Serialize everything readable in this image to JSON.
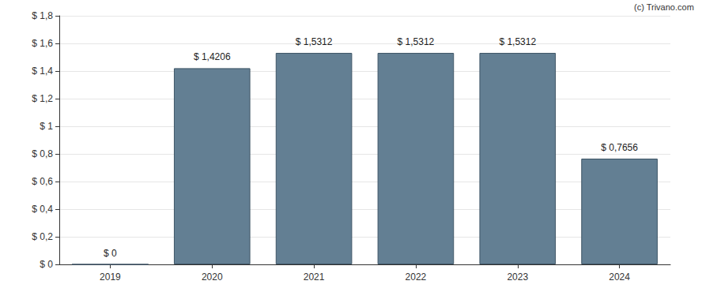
{
  "chart_data": {
    "type": "bar",
    "annotations": [
      "(c) Trivano.com"
    ],
    "categories": [
      "2019",
      "2020",
      "2021",
      "2022",
      "2023",
      "2024"
    ],
    "values": [
      0,
      1.4206,
      1.5312,
      1.5312,
      1.5312,
      0.7656
    ],
    "value_labels": [
      "$ 0",
      "$ 1,4206",
      "$ 1,5312",
      "$ 1,5312",
      "$ 1,5312",
      "$ 0,7656"
    ],
    "data_labels": true,
    "color": "#637f93",
    "ylim": [
      0,
      1.8
    ],
    "yticks": [
      {
        "value": 0,
        "label": "$ 0"
      },
      {
        "value": 0.2,
        "label": "$ 0,2"
      },
      {
        "value": 0.4,
        "label": "$ 0,4"
      },
      {
        "value": 0.6,
        "label": "$ 0,6"
      },
      {
        "value": 0.8,
        "label": "$ 0,8"
      },
      {
        "value": 1,
        "label": "$ 1"
      },
      {
        "value": 1.2,
        "label": "$ 1,2"
      },
      {
        "value": 1.4,
        "label": "$ 1,4"
      },
      {
        "value": 1.6,
        "label": "$ 1,6"
      },
      {
        "value": 1.8,
        "label": "$ 1,8"
      }
    ],
    "grid": true
  }
}
